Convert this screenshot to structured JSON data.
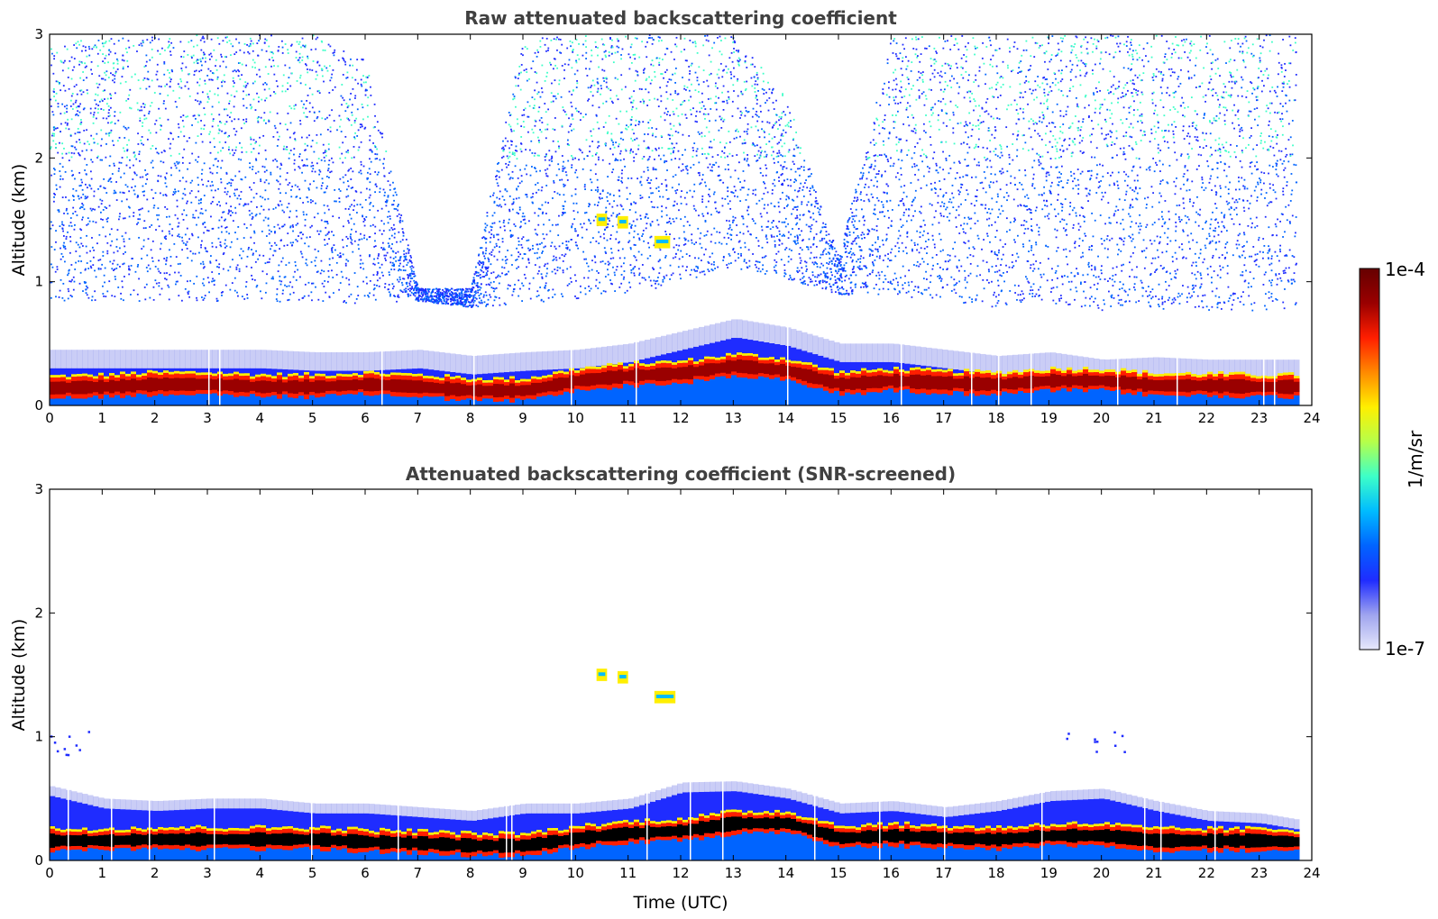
{
  "chart_data": [
    {
      "type": "heatmap",
      "title": "Raw attenuated backscattering coefficient",
      "xlabel": "",
      "ylabel": "Altitude (km)",
      "xlim": [
        0,
        24
      ],
      "ylim": [
        0,
        3
      ],
      "xticks": [
        "0",
        "1",
        "2",
        "3",
        "4",
        "5",
        "6",
        "7",
        "8",
        "9",
        "10",
        "11",
        "12",
        "13",
        "14",
        "15",
        "16",
        "17",
        "18",
        "19",
        "20",
        "21",
        "22",
        "23",
        "24"
      ],
      "yticks": [
        "0",
        "1",
        "2",
        "3"
      ],
      "layers": {
        "hours": [
          0,
          1,
          2,
          3,
          4,
          5,
          6,
          7,
          8,
          9,
          10,
          11,
          12,
          13,
          14,
          15,
          16,
          17,
          18,
          19,
          20,
          21,
          22,
          23,
          23.7
        ],
        "boundary_layer_top_km": [
          0.3,
          0.3,
          0.3,
          0.3,
          0.3,
          0.28,
          0.28,
          0.3,
          0.25,
          0.28,
          0.3,
          0.35,
          0.45,
          0.55,
          0.48,
          0.35,
          0.35,
          0.3,
          0.25,
          0.28,
          0.22,
          0.24,
          0.22,
          0.22,
          0.22
        ],
        "aerosol_layer_center_km": [
          0.14,
          0.15,
          0.17,
          0.17,
          0.15,
          0.15,
          0.17,
          0.15,
          0.12,
          0.12,
          0.2,
          0.24,
          0.26,
          0.32,
          0.28,
          0.17,
          0.2,
          0.18,
          0.17,
          0.2,
          0.2,
          0.16,
          0.16,
          0.15,
          0.15
        ],
        "clear_noise_top_km": [
          2.9,
          3.0,
          3.0,
          3.0,
          3.0,
          3.0,
          2.8,
          0.95,
          0.95,
          3.0,
          3.0,
          3.0,
          3.0,
          3.0,
          2.5,
          1.2,
          3.0,
          3.0,
          3.0,
          3.0,
          3.0,
          3.0,
          3.0,
          3.0,
          3.0
        ]
      },
      "features": [
        {
          "label": "cloud",
          "time_start": 10.4,
          "time_end": 10.6,
          "altitude_km": 1.5
        },
        {
          "label": "cloud",
          "time_start": 10.8,
          "time_end": 11.0,
          "altitude_km": 1.48
        },
        {
          "label": "cloud",
          "time_start": 11.5,
          "time_end": 11.8,
          "altitude_km": 1.32
        }
      ]
    },
    {
      "type": "heatmap",
      "title": "Attenuated backscattering coefficient (SNR-screened)",
      "xlabel": "Time (UTC)",
      "ylabel": "Altitude (km)",
      "xlim": [
        0,
        24
      ],
      "ylim": [
        0,
        3
      ],
      "xticks": [
        "0",
        "1",
        "2",
        "3",
        "4",
        "5",
        "6",
        "7",
        "8",
        "9",
        "10",
        "11",
        "12",
        "13",
        "14",
        "15",
        "16",
        "17",
        "18",
        "19",
        "20",
        "21",
        "22",
        "23",
        "24"
      ],
      "yticks": [
        "0",
        "1",
        "2",
        "3"
      ],
      "layers": {
        "hours": [
          0,
          1,
          2,
          3,
          4,
          5,
          6,
          7,
          8,
          9,
          10,
          11,
          12,
          13,
          14,
          15,
          16,
          17,
          18,
          19,
          20,
          21,
          22,
          23,
          23.7
        ],
        "boundary_layer_top_km": [
          0.52,
          0.42,
          0.4,
          0.42,
          0.42,
          0.38,
          0.38,
          0.35,
          0.32,
          0.38,
          0.38,
          0.42,
          0.55,
          0.56,
          0.5,
          0.38,
          0.4,
          0.35,
          0.4,
          0.48,
          0.5,
          0.4,
          0.32,
          0.3,
          0.25
        ],
        "saturated_core_center_km": [
          0.16,
          0.16,
          0.17,
          0.17,
          0.17,
          0.17,
          0.15,
          0.14,
          0.12,
          0.12,
          0.18,
          0.22,
          0.24,
          0.3,
          0.3,
          0.18,
          0.2,
          0.18,
          0.17,
          0.2,
          0.2,
          0.16,
          0.16,
          0.16,
          0.15
        ]
      },
      "features": [
        {
          "label": "cloud",
          "time_start": 10.4,
          "time_end": 10.6,
          "altitude_km": 1.5
        },
        {
          "label": "cloud",
          "time_start": 10.8,
          "time_end": 11.0,
          "altitude_km": 1.48
        },
        {
          "label": "cloud",
          "time_start": 11.5,
          "time_end": 11.9,
          "altitude_km": 1.32
        },
        {
          "label": "noise",
          "time_start": 0.0,
          "time_end": 0.8,
          "altitude_km": 0.95
        },
        {
          "label": "noise",
          "time_start": 19.3,
          "time_end": 20.5,
          "altitude_km": 0.98
        }
      ]
    }
  ],
  "colorbar": {
    "label": "1/m/sr",
    "max_label": "1e-4",
    "min_label": "1e-7",
    "scale": "log",
    "colormap": "jet",
    "colors": [
      "#e6e8fb",
      "#9fa4ef",
      "#1f2cff",
      "#0064ff",
      "#00bcff",
      "#3dffc8",
      "#b6ff4a",
      "#ffef00",
      "#ff8a00",
      "#ff1e00",
      "#9a0000",
      "#660000"
    ]
  }
}
